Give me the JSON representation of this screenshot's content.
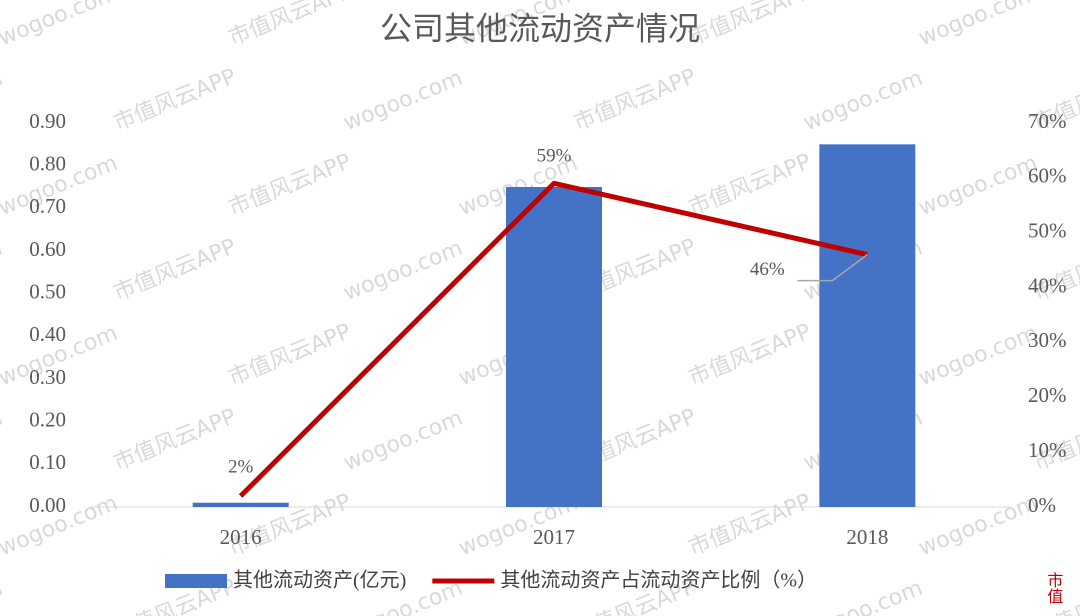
{
  "chart_data": {
    "type": "bar",
    "title": "公司其他流动资产情况",
    "categories": [
      "2016",
      "2017",
      "2018"
    ],
    "series": [
      {
        "name": "其他流动资产(亿元)",
        "type": "bar",
        "color": "#4472c4",
        "values": [
          0.01,
          0.75,
          0.85
        ]
      },
      {
        "name": "其他流动资产占流动资产比例（%）",
        "type": "line",
        "axis": "y2",
        "color": "#c00000",
        "values": [
          2,
          59,
          46
        ],
        "value_labels": [
          "2%",
          "59%",
          "46%"
        ]
      }
    ],
    "ylim": [
      0,
      0.9
    ],
    "yticks": [
      {
        "value": 0,
        "label": "0.00"
      },
      {
        "value": 0.1,
        "label": "0.10"
      },
      {
        "value": 0.2,
        "label": "0.20"
      },
      {
        "value": 0.3,
        "label": "0.30"
      },
      {
        "value": 0.4,
        "label": "0.40"
      },
      {
        "value": 0.5,
        "label": "0.50"
      },
      {
        "value": 0.6,
        "label": "0.60"
      },
      {
        "value": 0.7,
        "label": "0.70"
      },
      {
        "value": 0.8,
        "label": "0.80"
      },
      {
        "value": 0.9,
        "label": "0.90"
      }
    ],
    "y2lim": [
      0,
      70
    ],
    "y2ticks": [
      {
        "value": 0,
        "label": "0%"
      },
      {
        "value": 10,
        "label": "10%"
      },
      {
        "value": 20,
        "label": "20%"
      },
      {
        "value": 30,
        "label": "30%"
      },
      {
        "value": 40,
        "label": "40%"
      },
      {
        "value": 50,
        "label": "50%"
      },
      {
        "value": 60,
        "label": "60%"
      },
      {
        "value": 70,
        "label": "70%"
      }
    ],
    "grid": false,
    "legend": "bottom",
    "watermark": [
      "wogoo.com",
      "市值风云APP"
    ],
    "logo": "市值"
  }
}
